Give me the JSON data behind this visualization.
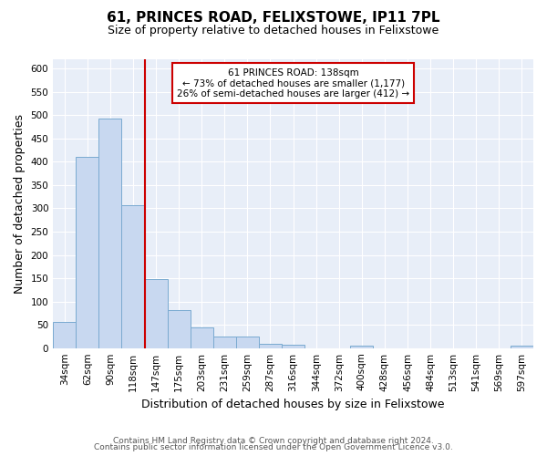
{
  "title": "61, PRINCES ROAD, FELIXSTOWE, IP11 7PL",
  "subtitle": "Size of property relative to detached houses in Felixstowe",
  "xlabel": "Distribution of detached houses by size in Felixstowe",
  "ylabel": "Number of detached properties",
  "categories": [
    "34sqm",
    "62sqm",
    "90sqm",
    "118sqm",
    "147sqm",
    "175sqm",
    "203sqm",
    "231sqm",
    "259sqm",
    "287sqm",
    "316sqm",
    "344sqm",
    "372sqm",
    "400sqm",
    "428sqm",
    "456sqm",
    "484sqm",
    "513sqm",
    "541sqm",
    "569sqm",
    "597sqm"
  ],
  "values": [
    57,
    411,
    493,
    307,
    148,
    82,
    44,
    24,
    24,
    10,
    7,
    0,
    0,
    5,
    0,
    0,
    0,
    0,
    0,
    0,
    5
  ],
  "bar_color": "#c8d8f0",
  "bar_edge_color": "#7aaad0",
  "vline_x": 3.5,
  "vline_color": "#cc0000",
  "annotation_text": "61 PRINCES ROAD: 138sqm\n← 73% of detached houses are smaller (1,177)\n26% of semi-detached houses are larger (412) →",
  "annotation_box_color": "#ffffff",
  "annotation_box_edge": "#cc0000",
  "ylim": [
    0,
    620
  ],
  "yticks": [
    0,
    50,
    100,
    150,
    200,
    250,
    300,
    350,
    400,
    450,
    500,
    550,
    600
  ],
  "footer1": "Contains HM Land Registry data © Crown copyright and database right 2024.",
  "footer2": "Contains public sector information licensed under the Open Government Licence v3.0.",
  "background_color": "#ffffff",
  "plot_bg_color": "#e8eef8",
  "grid_color": "#ffffff",
  "title_fontsize": 11,
  "subtitle_fontsize": 9,
  "axis_label_fontsize": 9,
  "tick_fontsize": 7.5,
  "footer_fontsize": 6.5
}
